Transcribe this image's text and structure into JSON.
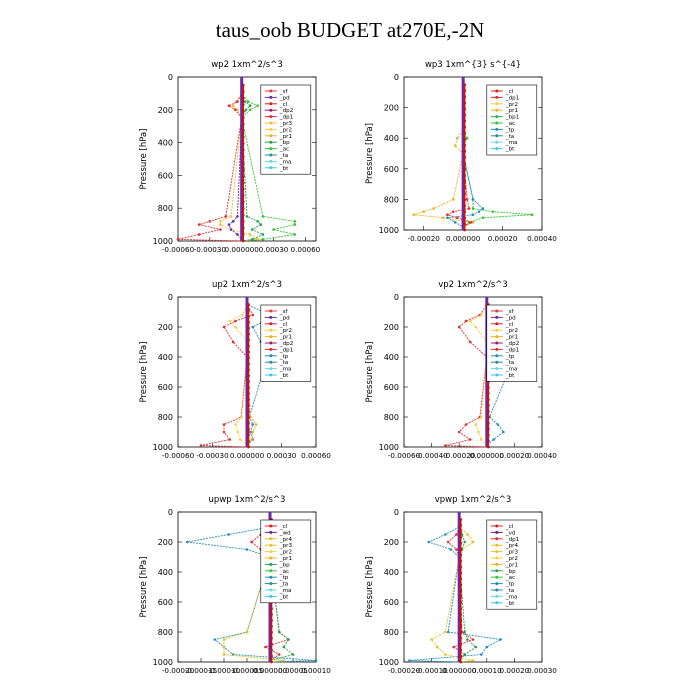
{
  "figure_title": "taus_oob  BUDGET at270E,-2N",
  "colors": {
    "sf": "#e23b3b",
    "pd": "#6a2aa8",
    "cl": "#d92020",
    "dp2": "#9a1a6a",
    "dp1": "#e03030",
    "pr3": "#f0c030",
    "pr2": "#f5d040",
    "pr1": "#f0b020",
    "bp": "#27a048",
    "ac": "#32c832",
    "tp": "#1f8fbf",
    "ta": "#2a88a0",
    "ma": "#6fd3e6",
    "bt": "#3ac6f0",
    "wd": "#6b1f8a",
    "pr4": "#e8c020",
    "bp1": "#2ab24a",
    "vd": "#6b1f8a",
    "total": "#cc1010",
    "zero": "#6a2aa8"
  },
  "chart_data": [
    {
      "type": "line",
      "title": "wp2  1xm^2/s^3",
      "ylabel": "Pressure [hPa]",
      "ylim": [
        1000,
        0
      ],
      "yticks": [
        0,
        200,
        400,
        600,
        800,
        1000
      ],
      "xlim": [
        -0.0006,
        0.0007
      ],
      "xticks": [
        "-0.00060",
        "-0.00030",
        "0.000000",
        "0.00030",
        "0.00060"
      ],
      "xtick_values": [
        -0.0006,
        -0.0003,
        0,
        0.0003,
        0.0006
      ],
      "legend": [
        "_sf",
        "_pd",
        "_cl",
        "_dp2",
        "_dp1",
        "_pr3",
        "_pr2",
        "_pr1",
        "_bp",
        "_ac",
        "_ta",
        "_ma",
        "_bt"
      ],
      "p": [
        100,
        150,
        175,
        200,
        250,
        850,
        880,
        900,
        930,
        960,
        990
      ],
      "series": [
        {
          "name": "_ac",
          "x": [
            0,
            6e-05,
            0.00015,
            8e-05,
            0,
            0.0002,
            0.0005,
            0.0005,
            0.0003,
            0.0005,
            0.0002
          ]
        },
        {
          "name": "_pr3",
          "x": [
            0,
            -5e-05,
            -8e-05,
            -4e-05,
            0,
            -0.0001,
            -0.0002,
            -0.0002,
            -0.0001,
            8e-05,
            0.00015
          ]
        },
        {
          "name": "_dp1",
          "x": [
            0,
            -4e-05,
            -0.00012,
            -6e-05,
            0,
            -0.00015,
            -0.0003,
            -0.0004,
            -0.0002,
            -0.0004,
            -0.0006
          ]
        },
        {
          "name": "_bp",
          "x": [
            0,
            3e-05,
            8e-05,
            4e-05,
            0,
            5e-05,
            0.00015,
            0.00018,
            0.0001,
            0.0002,
            0.0001
          ]
        },
        {
          "name": "_pd",
          "x": [
            0,
            0,
            0,
            0,
            0,
            -4e-05,
            -8e-05,
            -0.00012,
            -0.0001,
            -4e-05,
            0
          ]
        }
      ]
    },
    {
      "type": "line",
      "title": "wp3  1xm^{3} s^{-4}",
      "ylabel": "Pressure [hPa]",
      "ylim": [
        1000,
        0
      ],
      "yticks": [
        0,
        200,
        400,
        600,
        800,
        1000
      ],
      "xlim": [
        -0.0003,
        0.0004
      ],
      "xticks": [
        "-0.00020",
        "0.000000",
        "0.00020",
        "0.00040"
      ],
      "xtick_values": [
        -0.0002,
        0,
        0.0002,
        0.0004
      ],
      "legend": [
        "_cl",
        "_dp1",
        "_pr2",
        "_pr1",
        "_bp1",
        "_ac",
        "_tp",
        "_ta",
        "_ma",
        "_bt"
      ],
      "p": [
        350,
        400,
        450,
        500,
        800,
        860,
        880,
        900,
        920,
        950,
        980
      ],
      "series": [
        {
          "name": "_pr1",
          "x": [
            0,
            -3e-05,
            -4e-05,
            0,
            -5e-05,
            -0.00015,
            -0.0002,
            -0.00025,
            -0.0001,
            5e-05,
            0
          ]
        },
        {
          "name": "_ac",
          "x": [
            0,
            2e-05,
            0,
            0,
            5e-05,
            5e-05,
            0.00015,
            0.00035,
            0.0001,
            3e-05,
            0
          ]
        },
        {
          "name": "_tp",
          "x": [
            0,
            0,
            0,
            0,
            5e-05,
            0.0001,
            8e-05,
            5e-05,
            -8e-05,
            -4e-05,
            0
          ]
        },
        {
          "name": "_dp1",
          "x": [
            0,
            0,
            0,
            0,
            2e-05,
            3e-05,
            -5e-05,
            -8e-05,
            -3e-05,
            4e-05,
            0
          ]
        }
      ]
    },
    {
      "type": "line",
      "title": "up2  1xm^2/s^3",
      "ylabel": "Pressure [hPa]",
      "ylim": [
        1000,
        0
      ],
      "yticks": [
        0,
        200,
        400,
        600,
        800,
        1000
      ],
      "xlim": [
        -0.0006,
        0.0006
      ],
      "xticks": [
        "-0.00060",
        "-0.00030",
        "0.000000",
        "0.00030",
        "0.00060"
      ],
      "xtick_values": [
        -0.0006,
        -0.0003,
        0,
        0.0003,
        0.0006
      ],
      "legend": [
        "_sf",
        "_pd",
        "_cl",
        "_pr2",
        "_pr1",
        "_dp2",
        "_dp1",
        "_tp",
        "_ta",
        "_ma",
        "_bt"
      ],
      "p": [
        50,
        120,
        160,
        200,
        300,
        400,
        800,
        850,
        900,
        950,
        990
      ],
      "series": [
        {
          "name": "_dp1",
          "x": [
            0,
            5e-05,
            -0.0001,
            -0.0002,
            -0.00012,
            0,
            -5e-05,
            -0.0002,
            -0.0002,
            -0.00015,
            -0.0004
          ]
        },
        {
          "name": "_tp",
          "x": [
            0,
            0.0002,
            0.00015,
            5e-05,
            0.00012,
            0.00018,
            2e-05,
            5e-05,
            3e-05,
            5e-05,
            0
          ]
        },
        {
          "name": "_pr2",
          "x": [
            0,
            -4e-05,
            -0.00015,
            -0.0001,
            0,
            0,
            -5e-05,
            -0.0001,
            -8e-05,
            -6e-05,
            0
          ]
        },
        {
          "name": "_pr1",
          "x": [
            0,
            0,
            0,
            0,
            0,
            0,
            3e-05,
            8e-05,
            5e-05,
            4e-05,
            0
          ]
        }
      ]
    },
    {
      "type": "line",
      "title": "vp2  1xm^2/s^3",
      "ylabel": "Pressure [hPa]",
      "ylim": [
        1000,
        0
      ],
      "yticks": [
        0,
        200,
        400,
        600,
        800,
        1000
      ],
      "xlim": [
        -0.0006,
        0.0004
      ],
      "xticks": [
        "-0.00060",
        "-0.00040",
        "-0.00020",
        "0.000000",
        "0.00020",
        "0.00040"
      ],
      "xtick_values": [
        -0.0006,
        -0.0004,
        -0.0002,
        0,
        0.0002,
        0.0004
      ],
      "legend": [
        "_sf",
        "_pd",
        "_cl",
        "_pr2",
        "_pr1",
        "_dp2",
        "_dp1",
        "_tp",
        "_ta",
        "_ma",
        "_bt"
      ],
      "p": [
        50,
        120,
        160,
        200,
        300,
        400,
        800,
        850,
        900,
        950,
        990
      ],
      "series": [
        {
          "name": "_dp1",
          "x": [
            0,
            -5e-05,
            -0.00015,
            -0.0002,
            -0.00012,
            0,
            -5e-05,
            -0.00015,
            -0.0002,
            -0.00012,
            -0.0003
          ]
        },
        {
          "name": "_tp",
          "x": [
            0,
            0.0001,
            0.00016,
            8e-05,
            0.00012,
            0.0002,
            2e-05,
            8e-05,
            0.00012,
            5e-05,
            0
          ]
        },
        {
          "name": "_pr2",
          "x": [
            0,
            -4e-05,
            -0.00012,
            -8e-05,
            0,
            0,
            -4e-05,
            -8e-05,
            -6e-05,
            -4e-05,
            0
          ]
        }
      ]
    },
    {
      "type": "line",
      "title": "upwp  1xm^2/s^3",
      "ylabel": "Pressure [hPa]",
      "ylim": [
        1000,
        0
      ],
      "yticks": [
        0,
        200,
        400,
        600,
        800,
        1000
      ],
      "xlim": [
        -0.0002,
        0.0001
      ],
      "xticks": [
        "-0.00020",
        "-0.00015",
        "-0.00010",
        "-0.00005",
        "0.000000",
        "0.00005",
        "0.00010"
      ],
      "xtick_values": [
        -0.0002,
        -0.00015,
        -0.0001,
        -5e-05,
        0,
        5e-05,
        0.0001
      ],
      "legend": [
        "_cl",
        "_wd",
        "_pr4",
        "_pr3",
        "_pr2",
        "_pr1",
        "_bp",
        "_ac",
        "_tp",
        "_ta",
        "_ma",
        "_bt"
      ],
      "p": [
        100,
        150,
        200,
        250,
        300,
        800,
        850,
        900,
        950,
        990
      ],
      "series": [
        {
          "name": "_tp",
          "x": [
            0,
            -9e-05,
            -0.00018,
            -5e-05,
            0,
            -5e-05,
            -0.00012,
            -0.0001,
            -8e-05,
            0.0001
          ]
        },
        {
          "name": "_pr4",
          "x": [
            0,
            4e-05,
            7e-05,
            2e-05,
            0,
            -5e-05,
            -0.0001,
            -0.0001,
            -0.0001,
            3e-05
          ]
        },
        {
          "name": "_dp1",
          "x": [
            0,
            -2e-05,
            -4e-05,
            -2e-05,
            0,
            2e-05,
            4e-05,
            -1e-05,
            2e-05,
            0
          ]
        },
        {
          "name": "_bp",
          "x": [
            0,
            1e-05,
            3e-05,
            1e-05,
            0,
            2e-05,
            4e-05,
            3e-05,
            5e-05,
            0
          ]
        }
      ]
    },
    {
      "type": "line",
      "title": "vpwp  1xm^2/s^3",
      "ylabel": "Pressure [hPa]",
      "ylim": [
        1000,
        0
      ],
      "yticks": [
        0,
        200,
        400,
        600,
        800,
        1000
      ],
      "xlim": [
        -0.0002,
        0.0003
      ],
      "xticks": [
        "-0.00020",
        "-0.00010",
        "0.000000",
        "0.00010",
        "0.00020",
        "0.00030"
      ],
      "xtick_values": [
        -0.0002,
        -0.0001,
        0,
        0.0001,
        0.0002,
        0.0003
      ],
      "legend": [
        "_cl",
        "_vd",
        "_dp1",
        "_pr4",
        "_pr3",
        "_pr2",
        "_pr1",
        "_bp",
        "_ac",
        "_tp",
        "_ta",
        "_ma",
        "_bt"
      ],
      "p": [
        100,
        150,
        200,
        250,
        300,
        800,
        850,
        900,
        950,
        990
      ],
      "series": [
        {
          "name": "_tp",
          "x": [
            0,
            -5e-05,
            -0.00011,
            -3e-05,
            0,
            -4e-05,
            0.00015,
            0.0001,
            8e-05,
            -0.00018
          ]
        },
        {
          "name": "_pr4",
          "x": [
            0,
            3e-05,
            5e-05,
            1e-05,
            0,
            -5e-05,
            -0.0001,
            -8e-05,
            -5e-05,
            5e-05
          ]
        },
        {
          "name": "_dp1",
          "x": [
            0,
            -1e-05,
            -4e-05,
            -1e-05,
            0,
            1e-05,
            5e-05,
            -2e-05,
            2e-05,
            0
          ]
        },
        {
          "name": "_bp",
          "x": [
            0,
            1e-05,
            2e-05,
            1e-05,
            0,
            2e-05,
            3e-05,
            6e-05,
            2e-05,
            0
          ]
        }
      ]
    }
  ]
}
